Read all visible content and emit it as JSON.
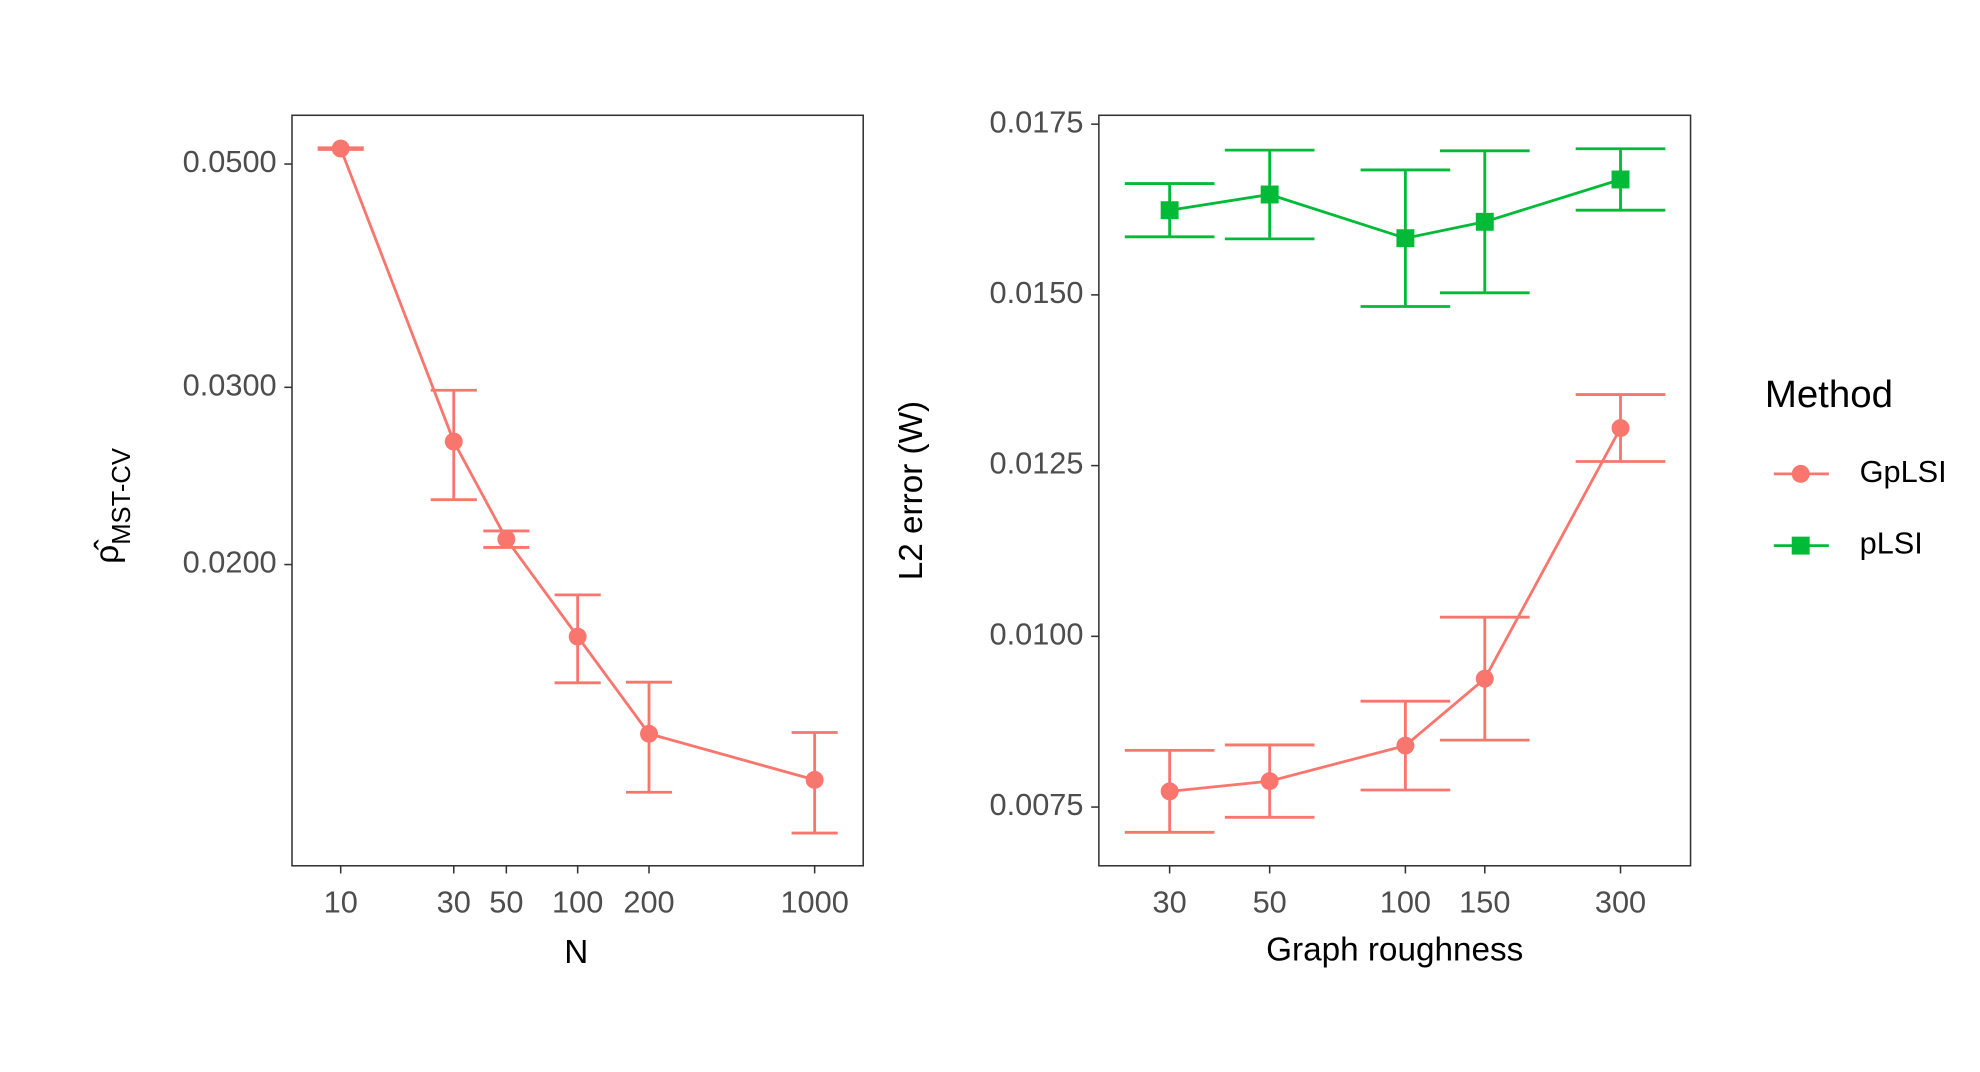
{
  "chart_data": [
    {
      "type": "line",
      "xlabel": "N",
      "ylabel": "ρ̂",
      "ylabel_subscript": "MST-CV",
      "x": [
        10,
        30,
        50,
        100,
        200,
        1000
      ],
      "xlog": true,
      "ylog": true,
      "series": [
        {
          "color": "#F8766D",
          "marker": "circle",
          "values": [
            0.0518,
            0.0265,
            0.0212,
            0.01696,
            0.01358,
            0.01222
          ],
          "errors": [
            0.0001,
            0.0033,
            0.0004,
            0.0017,
            0.0017,
            0.0014
          ]
        }
      ],
      "xlim": [
        6.23,
        1603
      ],
      "ylim": [
        0.01004,
        0.0559
      ],
      "xticks": [
        10,
        30,
        50,
        100,
        200,
        1000
      ],
      "yticks": [
        {
          "value": 0.05,
          "label": "0.0500"
        },
        {
          "value": 0.03,
          "label": "0.0300"
        },
        {
          "value": 0.02,
          "label": "0.0200"
        }
      ],
      "grid": false
    },
    {
      "type": "line",
      "xlabel": "Graph roughness",
      "ylabel": "L2 error (W)",
      "x": [
        30,
        50,
        100,
        150,
        300
      ],
      "xlog": true,
      "ylog": false,
      "series": [
        {
          "name": "GpLSI",
          "color": "#F8766D",
          "marker": "circle",
          "values": [
            0.00773,
            0.00788,
            0.0084,
            0.00938,
            0.01305
          ],
          "errors": [
            0.0006,
            0.00053,
            0.00065,
            0.0009,
            0.00049
          ]
        },
        {
          "name": "pLSI",
          "color": "#00BA38",
          "marker": "square",
          "values": [
            0.01624,
            0.01647,
            0.01583,
            0.01607,
            0.01669
          ],
          "errors": [
            0.00039,
            0.00065,
            0.001,
            0.00104,
            0.00045
          ]
        }
      ],
      "xlim": [
        20.9,
        429
      ],
      "ylim": [
        0.00664,
        0.01763
      ],
      "xticks": [
        30,
        50,
        100,
        150,
        300
      ],
      "yticks": [
        {
          "value": 0.0075,
          "label": "0.0075"
        },
        {
          "value": 0.01,
          "label": "0.0100"
        },
        {
          "value": 0.0125,
          "label": "0.0125"
        },
        {
          "value": 0.015,
          "label": "0.0150"
        },
        {
          "value": 0.0175,
          "label": "0.0175"
        }
      ],
      "grid": false,
      "legend": "right",
      "legend_title": "Method"
    }
  ]
}
